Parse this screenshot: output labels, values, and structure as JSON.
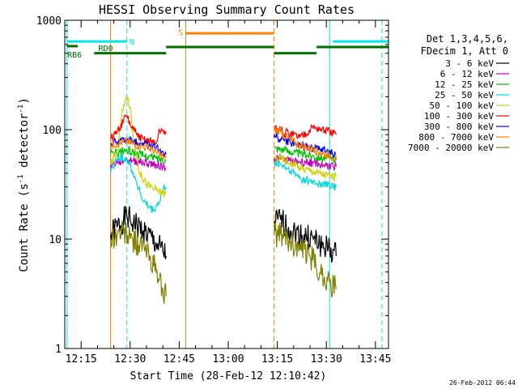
{
  "chart_data": {
    "type": "line",
    "title": "HESSI Observing Summary Count Rates",
    "xlabel": "Start Time (28-Feb-12 12:10:42)",
    "ylabel": "Count Rate (s",
    "ylabel_sup1": "-1",
    "ylabel_mid": " detector",
    "ylabel_sup2": "-1",
    "ylabel_end": ")",
    "yscale": "log",
    "ylim": [
      1,
      1000
    ],
    "y_ticks": [
      1,
      10,
      100,
      1000
    ],
    "y_tick_labels": [
      "1",
      "10",
      "100",
      "1000"
    ],
    "xlim": [
      "12:10",
      "13:49"
    ],
    "x_ticks": [
      "12:15",
      "12:30",
      "12:45",
      "13:00",
      "13:15",
      "13:30",
      "13:45"
    ],
    "timestamp": "26-Feb-2012 06:44",
    "legend_header": [
      "Det 1,3,4,5,6,",
      "FDecim 1, Att 0"
    ],
    "legend_placement": "right",
    "grid": false,
    "data_gaps": [
      [
        "12:41:30",
        "13:14:30"
      ],
      [
        "13:35:30",
        "13:49"
      ]
    ],
    "series": [
      {
        "name": "3 - 6 keV",
        "color": "#000000",
        "t": [
          "12:24",
          "12:26",
          "12:29",
          "12:31",
          "12:34",
          "12:38",
          "12:41",
          "13:14",
          "13:16",
          "13:19",
          "13:22",
          "13:26",
          "13:28",
          "13:31",
          "13:33"
        ],
        "values": [
          11,
          13,
          16,
          14,
          12,
          9,
          7,
          14,
          15,
          12,
          11,
          10,
          9,
          8,
          7
        ]
      },
      {
        "name": "6 - 12 keV",
        "color": "#c000c0",
        "t": [
          "12:24",
          "12:26",
          "12:29",
          "12:31",
          "12:34",
          "12:38",
          "12:41",
          "13:14",
          "13:16",
          "13:19",
          "13:22",
          "13:26",
          "13:28",
          "13:31",
          "13:33"
        ],
        "values": [
          47,
          50,
          54,
          52,
          50,
          48,
          45,
          55,
          54,
          52,
          51,
          50,
          48,
          47,
          46
        ]
      },
      {
        "name": "12 - 25 keV",
        "color": "#00c000",
        "t": [
          "12:24",
          "12:26",
          "12:29",
          "12:31",
          "12:34",
          "12:38",
          "12:41",
          "13:14",
          "13:16",
          "13:19",
          "13:22",
          "13:26",
          "13:28",
          "13:31",
          "13:33"
        ],
        "values": [
          60,
          62,
          65,
          62,
          58,
          55,
          53,
          68,
          67,
          63,
          60,
          58,
          56,
          55,
          53
        ]
      },
      {
        "name": "25 - 50 keV",
        "color": "#00d8d8",
        "t": [
          "12:24",
          "12:26",
          "12:29",
          "12:31",
          "12:34",
          "12:37",
          "12:39",
          "12:40",
          "12:41",
          "13:14",
          "13:16",
          "13:19",
          "13:22",
          "13:26",
          "13:28",
          "13:31",
          "13:33"
        ],
        "values": [
          40,
          55,
          55,
          40,
          22,
          18,
          22,
          28,
          30,
          50,
          48,
          42,
          36,
          33,
          32,
          31,
          30
        ]
      },
      {
        "name": "50 - 100 keV",
        "color": "#d0d000",
        "t": [
          "12:24",
          "12:26",
          "12:28",
          "12:29",
          "12:30",
          "12:31",
          "12:33",
          "12:35",
          "12:38",
          "12:41",
          "13:14",
          "13:16",
          "13:19",
          "13:22",
          "13:26",
          "13:28",
          "13:31",
          "13:33"
        ],
        "values": [
          48,
          65,
          170,
          195,
          160,
          80,
          40,
          32,
          28,
          26,
          55,
          55,
          50,
          45,
          42,
          40,
          38,
          37
        ]
      },
      {
        "name": "100 - 300 keV",
        "color": "#ff0000",
        "t": [
          "12:24",
          "12:26",
          "12:28",
          "12:29",
          "12:30",
          "12:32",
          "12:34",
          "12:36",
          "12:38",
          "12:39",
          "12:40",
          "12:41",
          "13:14",
          "13:16",
          "13:19",
          "13:22",
          "13:26",
          "13:28",
          "13:31",
          "13:33"
        ],
        "values": [
          82,
          95,
          120,
          135,
          110,
          90,
          82,
          78,
          75,
          98,
          97,
          95,
          100,
          98,
          92,
          86,
          105,
          100,
          95,
          90
        ]
      },
      {
        "name": "300 - 800 keV",
        "color": "#0000ff",
        "t": [
          "12:24",
          "12:26",
          "12:29",
          "12:31",
          "12:34",
          "12:37",
          "12:39",
          "12:41",
          "13:14",
          "13:16",
          "13:19",
          "13:22",
          "13:26",
          "13:28",
          "13:31",
          "13:33"
        ],
        "values": [
          75,
          78,
          80,
          78,
          75,
          72,
          65,
          60,
          85,
          82,
          76,
          72,
          68,
          65,
          62,
          58
        ]
      },
      {
        "name": "800 - 7000 keV",
        "color": "#ff8000",
        "t": [
          "12:24",
          "12:26",
          "12:29",
          "12:31",
          "12:34",
          "12:37",
          "12:39",
          "12:41",
          "13:14",
          "13:16",
          "13:19",
          "13:22",
          "13:26",
          "13:28",
          "13:31",
          "13:33"
        ],
        "values": [
          72,
          75,
          78,
          74,
          70,
          65,
          58,
          55,
          100,
          95,
          80,
          72,
          66,
          62,
          58,
          55
        ]
      },
      {
        "name": "7000 - 20000 keV",
        "color": "#808000",
        "t": [
          "12:24",
          "12:26",
          "12:28",
          "12:30",
          "12:33",
          "12:36",
          "12:38",
          "12:40",
          "12:41",
          "13:14",
          "13:16",
          "13:19",
          "13:22",
          "13:25",
          "13:28",
          "13:31",
          "13:33"
        ],
        "values": [
          10,
          11,
          12,
          10,
          9,
          7,
          5,
          3.5,
          3,
          11,
          11,
          9.5,
          8,
          7,
          5,
          4,
          3.5
        ]
      }
    ],
    "annotations": {
      "segments": [
        {
          "label": "",
          "color": "#00e8e8",
          "level": 640,
          "start": "12:10:42",
          "end": "12:29"
        },
        {
          "label": "",
          "color": "#00e8e8",
          "level": 640,
          "start": "13:32",
          "end": "13:49"
        },
        {
          "label": "",
          "color": "#ff8000",
          "level": 760,
          "start": "12:47",
          "end": "13:14"
        },
        {
          "label": "",
          "color": "#007000",
          "level": 580,
          "start": "12:10:42",
          "end": "12:14"
        },
        {
          "label": "",
          "color": "#007000",
          "level": 500,
          "start": "12:19",
          "end": "12:41"
        },
        {
          "label": "",
          "color": "#007000",
          "level": 570,
          "start": "12:41",
          "end": "13:14"
        },
        {
          "label": "",
          "color": "#007000",
          "level": 500,
          "start": "13:14",
          "end": "13:27"
        },
        {
          "label": "",
          "color": "#007000",
          "level": 570,
          "start": "13:27",
          "end": "13:49"
        }
      ],
      "labels": [
        {
          "text": "N",
          "color": "#00e8e8",
          "time": "12:30:30",
          "level": 640
        },
        {
          "text": "S",
          "color": "#ff8000",
          "time": "12:45:30",
          "level": 780
        },
        {
          "text": "RD0",
          "color": "#007000",
          "time": "12:22:30",
          "level": 560
        },
        {
          "text": "RB6",
          "color": "#007000",
          "time": "12:13",
          "level": 490
        }
      ],
      "vlines": [
        {
          "color": "#00e8e8",
          "time": "12:10:42",
          "dashed": false
        },
        {
          "color": "#00e8e8",
          "time": "12:29",
          "dashed": true
        },
        {
          "color": "#ff8000",
          "time": "12:24",
          "dashed": false
        },
        {
          "color": "#ff8000",
          "time": "12:47",
          "dashed": false
        },
        {
          "color": "#ff8000",
          "time": "13:14",
          "dashed": true
        },
        {
          "color": "#00e8e8",
          "time": "13:31",
          "dashed": false
        },
        {
          "color": "#00e8e8",
          "time": "13:47",
          "dashed": true
        }
      ]
    }
  }
}
